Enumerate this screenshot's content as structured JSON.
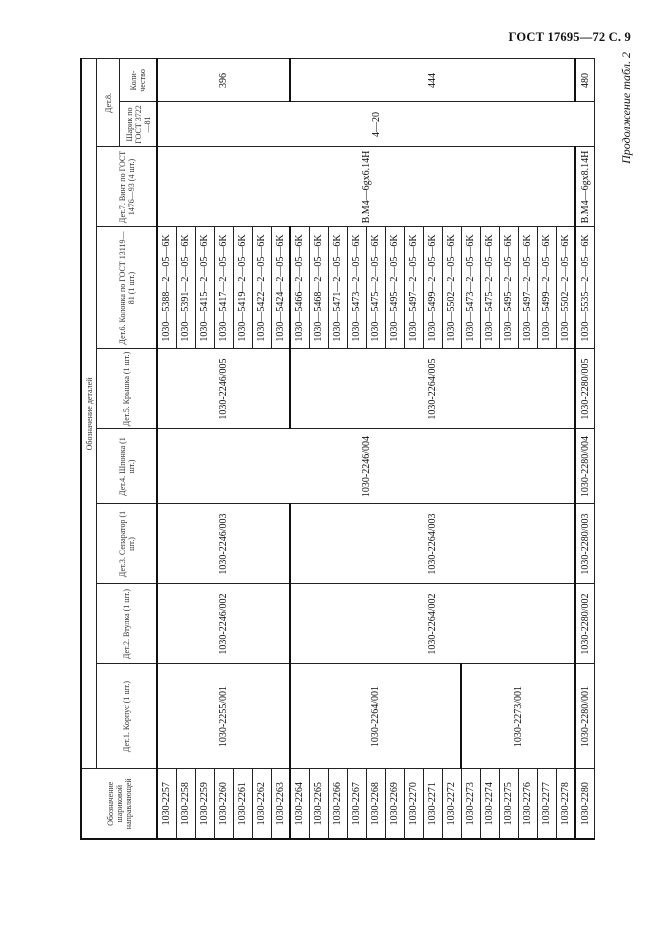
{
  "page_header": "ГОСТ 17695—72 С. 9",
  "caption": "Продолжение табл. 2",
  "table": {
    "group_header": "Обозначение деталей",
    "columns": {
      "designation": "Обозначение шариковой направляющей",
      "det1": "Дет.1. Корпус (1 шт.)",
      "det2": "Дет.2. Втулка (1 шт.)",
      "det3": "Дет.3. Сепаратор (1 шт.)",
      "det4": "Дет.4. Шпонка (1 шт.)",
      "det5": "Дет.5. Крышка (1 шт.)",
      "det6": "Дет.6. Колонка по ГОСТ 13119—81 (1 шт.)",
      "det7": "Дет.7. Винт по ГОСТ 1476—93 (4 шт.)",
      "det8": "Дет.8.",
      "det8_ball": "Шарик по ГОСТ 3722—81",
      "det8_qty": "Коли-чество"
    },
    "designations": [
      "1030-2257",
      "1030-2258",
      "1030-2259",
      "1030-2260",
      "1030-2261",
      "1030-2262",
      "1030-2263",
      "1030-2264",
      "1030-2265",
      "1030-2266",
      "1030-2267",
      "1030-2268",
      "1030-2269",
      "1030-2270",
      "1030-2271",
      "1030-2272",
      "1030-2273",
      "1030-2274",
      "1030-2275",
      "1030-2276",
      "1030-2277",
      "1030-2278",
      "1030-2280"
    ],
    "det1": [
      {
        "value": "1030-2255/001",
        "rows": 7
      },
      {
        "value": "1030-2264/001",
        "rows": 9
      },
      {
        "value": "1030-2273/001",
        "rows": 6
      },
      {
        "value": "1030-2280/001",
        "rows": 1
      }
    ],
    "det2": [
      {
        "value": "1030-2246/002",
        "rows": 7
      },
      {
        "value": "1030-2264/002",
        "rows": 15
      },
      {
        "value": "1030-2280/002",
        "rows": 1
      }
    ],
    "det3": [
      {
        "value": "1030-2246/003",
        "rows": 7
      },
      {
        "value": "1030-2264/003",
        "rows": 15
      },
      {
        "value": "1030-2280/003",
        "rows": 1
      }
    ],
    "det4": [
      {
        "value": "1030-2246/004",
        "rows": 22
      },
      {
        "value": "1030-2280/004",
        "rows": 1
      }
    ],
    "det5": [
      {
        "value": "1030-2246/005",
        "rows": 7
      },
      {
        "value": "1030-2264/005",
        "rows": 15
      },
      {
        "value": "1030-2280/005",
        "rows": 1
      }
    ],
    "det6": [
      "1030—5388—2—05—6K",
      "1030—5391—2—05—6K",
      "1030—5415—2—05—6K",
      "1030—5417—2—05—6K",
      "1030—5419—2—05—6K",
      "1030—5422—2—05—6K",
      "1030—5424—2—05—6K",
      "1030—5466—2—05—6K",
      "1030—5468—2—05—6K",
      "1030—5471—2—05—6K",
      "1030—5473—2—05—6K",
      "1030—5475—2—05—6K",
      "1030—5495—2—05—6K",
      "1030—5497—2—05—6K",
      "1030—5499—2—05—6K",
      "1030—5502—2—05—6K",
      "1030—5473—2—05—6K",
      "1030—5475—2—05—6K",
      "1030—5495—2—05—6K",
      "1030—5497—2—05—6K",
      "1030—5499—2—05—6K",
      "1030—5502—2—05—6K",
      "1030—5535—2—05—6K"
    ],
    "det7": [
      {
        "value": "В.М4—6gх6.14Н",
        "rows": 22
      },
      {
        "value": "В.М4—6gх8.14Н",
        "rows": 1
      }
    ],
    "det8_ball": [
      {
        "value": "4—20",
        "rows": 23
      }
    ],
    "det8_qty": [
      {
        "value": "396",
        "rows": 7
      },
      {
        "value": "444",
        "rows": 15
      },
      {
        "value": "480",
        "rows": 1
      }
    ]
  }
}
